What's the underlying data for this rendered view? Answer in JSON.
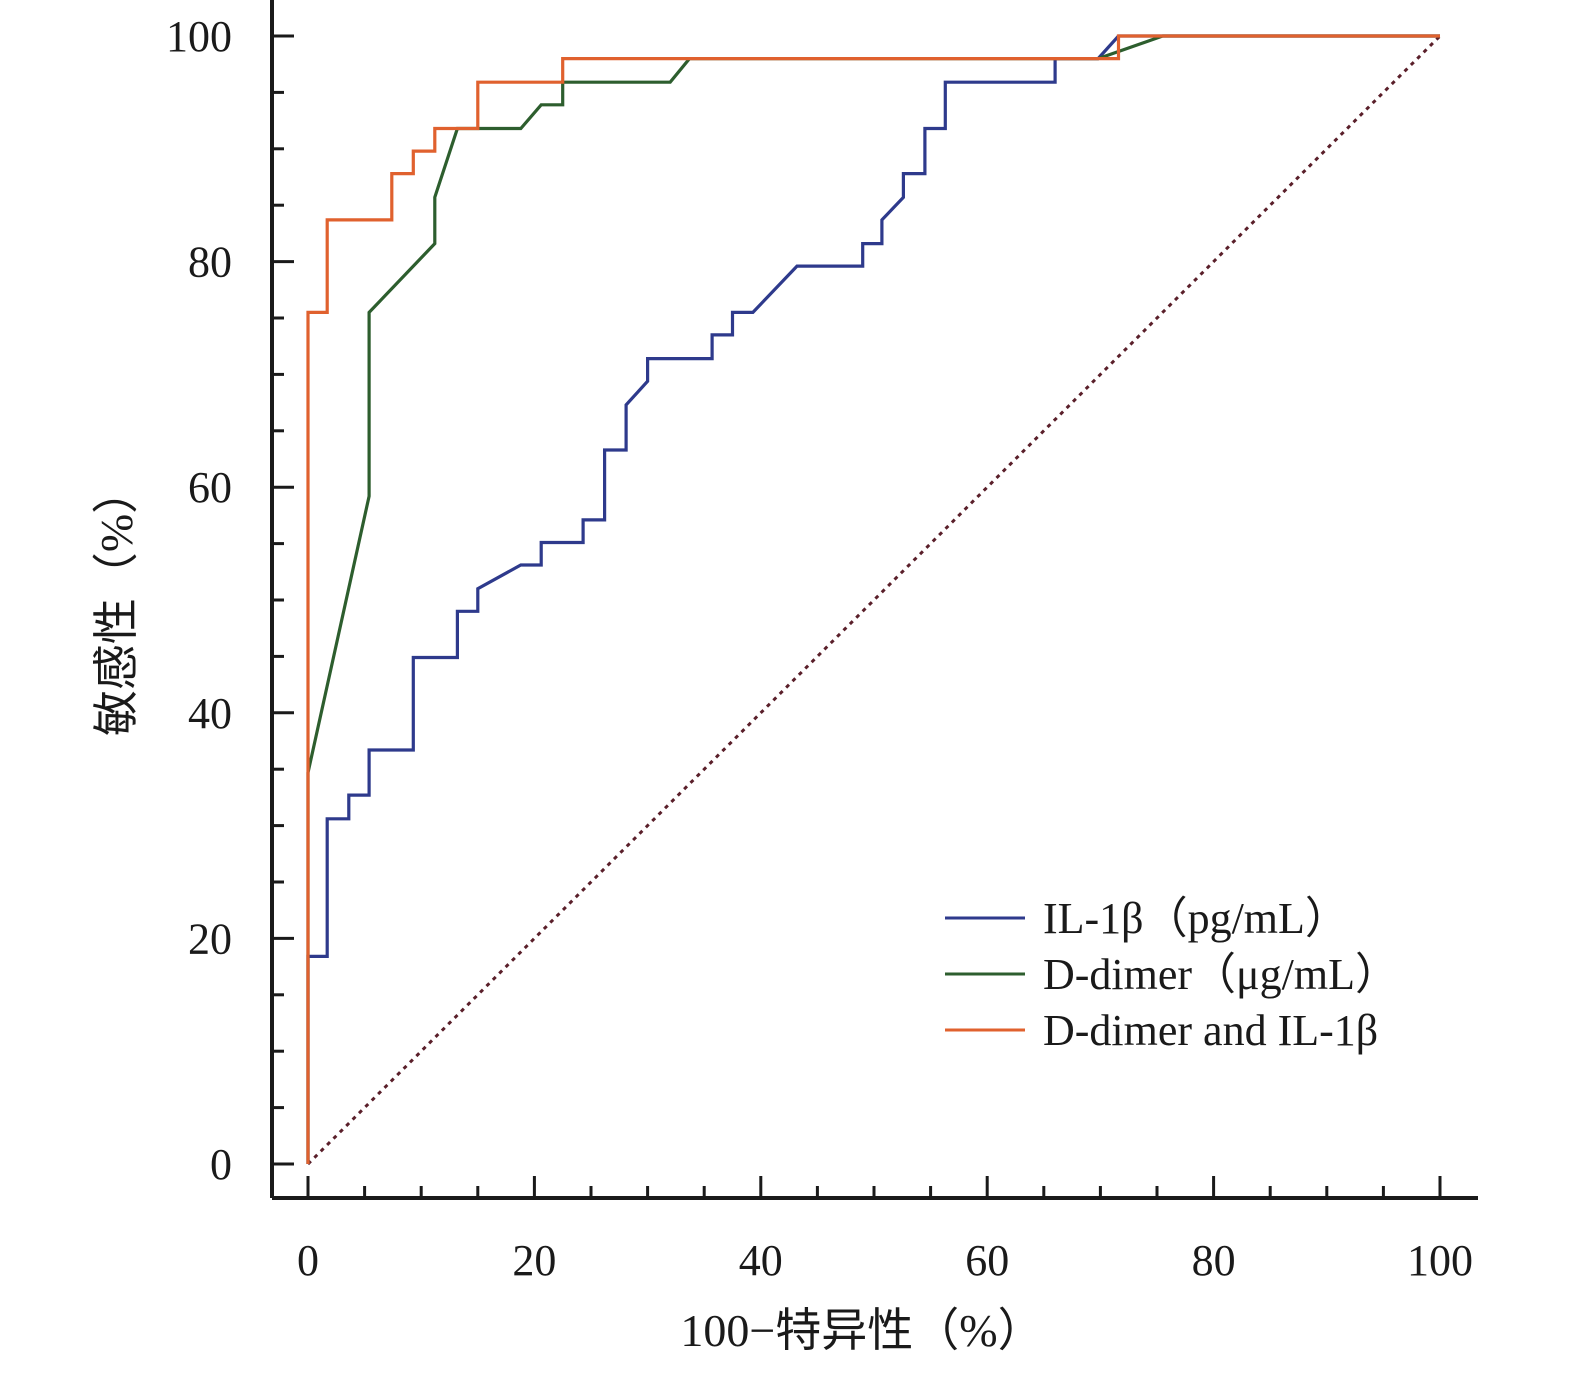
{
  "chart_data": {
    "type": "line",
    "title": "",
    "xlabel": "100−特异性（%）",
    "ylabel": "敏感性（%）",
    "xlim": [
      0,
      100
    ],
    "ylim": [
      0,
      100
    ],
    "x_ticks": [
      0,
      20,
      40,
      60,
      80,
      100
    ],
    "y_ticks": [
      0,
      20,
      40,
      60,
      80,
      100
    ],
    "x_tick_labels": [
      "0",
      "20",
      "40",
      "60",
      "80",
      "100"
    ],
    "y_tick_labels": [
      "0",
      "20",
      "40",
      "60",
      "80",
      "100"
    ],
    "grid": false,
    "legend_position": "bottom-right",
    "series": [
      {
        "name": "IL-1β（pg/mL）",
        "color": "#2e3a8c",
        "x": [
          0,
          0,
          1.7,
          1.7,
          3.6,
          3.6,
          5.4,
          5.4,
          9.3,
          9.3,
          13.2,
          13.2,
          15.0,
          15.0,
          18.8,
          20.6,
          20.6,
          24.3,
          24.3,
          26.2,
          26.2,
          28.1,
          28.1,
          30.0,
          30.0,
          35.7,
          35.7,
          37.5,
          37.5,
          39.3,
          43.2,
          49.0,
          49.0,
          50.7,
          50.7,
          52.6,
          52.6,
          54.5,
          54.5,
          56.3,
          56.3,
          66.0,
          66.0,
          69.8,
          71.6,
          100
        ],
        "y": [
          0,
          18.4,
          18.4,
          30.6,
          30.6,
          32.7,
          32.7,
          36.7,
          36.7,
          44.9,
          44.9,
          49.0,
          49.0,
          51.0,
          53.1,
          53.1,
          55.1,
          55.1,
          57.1,
          57.1,
          63.3,
          63.3,
          67.3,
          69.4,
          71.4,
          71.4,
          73.5,
          73.5,
          75.5,
          75.5,
          79.6,
          79.6,
          81.6,
          81.6,
          83.7,
          85.7,
          87.8,
          87.8,
          91.8,
          91.8,
          95.9,
          95.9,
          98.0,
          98.0,
          100,
          100
        ]
      },
      {
        "name": "D-dimer（μg/mL）",
        "color": "#2d5e2e",
        "x": [
          0,
          0,
          5.4,
          5.4,
          11.2,
          11.2,
          13.2,
          18.8,
          20.6,
          22.5,
          22.5,
          32.0,
          33.7,
          69.8,
          75.5,
          100
        ],
        "y": [
          0,
          34.7,
          59.2,
          75.5,
          81.6,
          85.7,
          91.8,
          91.8,
          93.9,
          93.9,
          95.9,
          95.9,
          98.0,
          98.0,
          100,
          100
        ]
      },
      {
        "name": "D-dimer and IL-1β",
        "color": "#e0612e",
        "x": [
          0,
          0,
          1.7,
          1.7,
          7.4,
          7.4,
          9.3,
          9.3,
          11.2,
          11.2,
          15.0,
          15.0,
          22.5,
          22.5,
          71.6,
          71.6,
          100
        ],
        "y": [
          0,
          75.5,
          75.5,
          83.7,
          83.7,
          87.8,
          87.8,
          89.8,
          89.8,
          91.8,
          91.8,
          95.9,
          95.9,
          98.0,
          98.0,
          100,
          100
        ]
      }
    ],
    "reference_line": {
      "x": [
        0,
        100
      ],
      "y": [
        0,
        100
      ],
      "color": "#5a1f2a",
      "style": "dotted"
    }
  }
}
